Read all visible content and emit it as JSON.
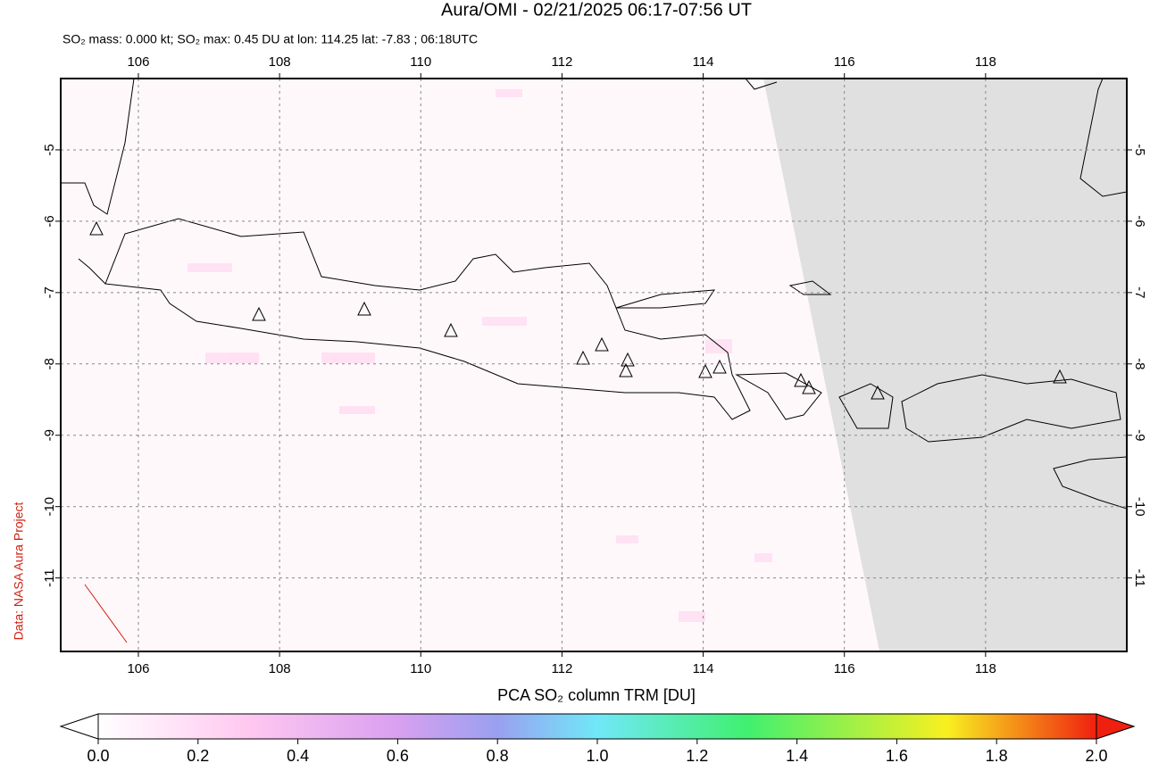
{
  "title": "Aura/OMI - 02/21/2025 06:17-07:56 UT",
  "subtitle": "SO₂ mass: 0.000 kt; SO₂ max: 0.45 DU at lon: 114.25 lat: -7.83 ; 06:18UTC",
  "credit": "Data: NASA Aura Project",
  "map": {
    "xlim": [
      104.9,
      120
    ],
    "ylim": [
      -12.03,
      -4
    ],
    "xticks": [
      106,
      108,
      110,
      112,
      114,
      116,
      118
    ],
    "yticks": [
      -5,
      -6,
      -7,
      -8,
      -9,
      -10,
      -11
    ]
  },
  "colorbar": {
    "label": "PCA SO₂ column TRM [DU]",
    "lim": [
      0,
      2
    ],
    "ticks": [
      {
        "value": 0,
        "label": "0.0"
      },
      {
        "value": 0.2,
        "label": "0.2"
      },
      {
        "value": 0.4,
        "label": "0.4"
      },
      {
        "value": 0.6,
        "label": "0.6"
      },
      {
        "value": 0.8,
        "label": "0.8"
      },
      {
        "value": 1,
        "label": "1.0"
      },
      {
        "value": 1.2,
        "label": "1.2"
      },
      {
        "value": 1.4,
        "label": "1.4"
      },
      {
        "value": 1.6,
        "label": "1.6"
      },
      {
        "value": 1.8,
        "label": "1.8"
      },
      {
        "value": 2,
        "label": "2.0"
      }
    ]
  }
}
